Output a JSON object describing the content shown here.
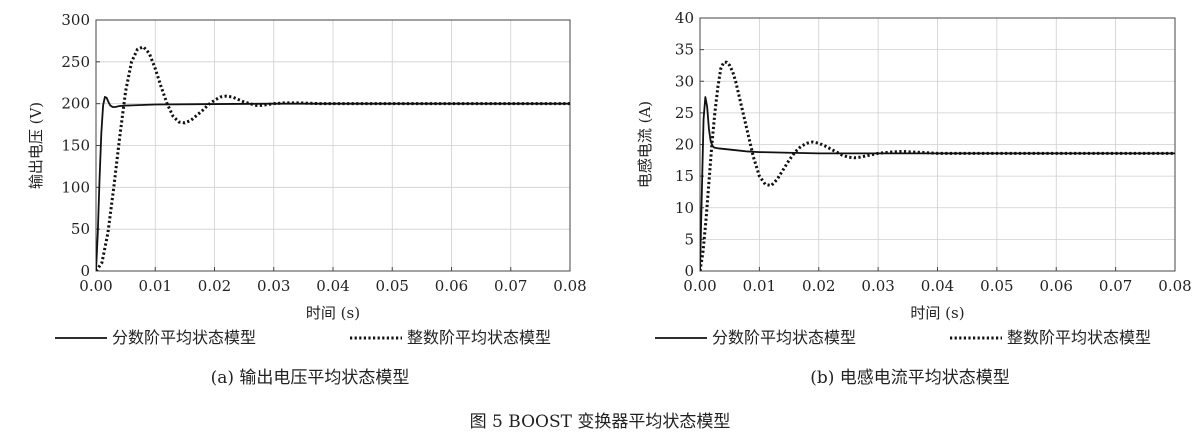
{
  "figure_caption": "图 5   BOOST 变换器平均状态模型",
  "chart_data": [
    {
      "type": "line",
      "subcaption": "(a) 输出电压平均状态模型",
      "xlabel": "时间 (s)",
      "ylabel": "输出电压 (V)",
      "xlim": [
        0,
        0.08
      ],
      "ylim": [
        0,
        300
      ],
      "xticks": [
        0,
        0.01,
        0.02,
        0.03,
        0.04,
        0.05,
        0.06,
        0.07,
        0.08
      ],
      "xtick_labels": [
        "0.00",
        "0.01",
        "0.02",
        "0.03",
        "0.04",
        "0.05",
        "0.06",
        "0.07",
        "0.08"
      ],
      "yticks": [
        0,
        50,
        100,
        150,
        200,
        250,
        300
      ],
      "ytick_labels": [
        "0",
        "50",
        "100",
        "150",
        "200",
        "250",
        "300"
      ],
      "grid": true,
      "legend_position": "bottom",
      "series": [
        {
          "name": "分数阶平均状态模型",
          "style": "solid",
          "color": "#111111",
          "x": [
            0,
            0.0003,
            0.0006,
            0.0009,
            0.0012,
            0.0015,
            0.0018,
            0.0021,
            0.0024,
            0.0028,
            0.0033,
            0.0038,
            0.0045,
            0.006,
            0.01,
            0.02,
            0.03,
            0.04,
            0.06,
            0.08
          ],
          "y": [
            0,
            45,
            110,
            165,
            198,
            208,
            207,
            202,
            198,
            196,
            196,
            197,
            197.5,
            198,
            199,
            199.5,
            200,
            200,
            200,
            200
          ]
        },
        {
          "name": "整数阶平均状态模型",
          "style": "dotted",
          "color": "#111111",
          "x": [
            0,
            0.001,
            0.002,
            0.003,
            0.004,
            0.005,
            0.006,
            0.007,
            0.008,
            0.009,
            0.01,
            0.011,
            0.012,
            0.013,
            0.014,
            0.015,
            0.016,
            0.017,
            0.018,
            0.019,
            0.02,
            0.021,
            0.022,
            0.023,
            0.024,
            0.025,
            0.026,
            0.027,
            0.028,
            0.029,
            0.03,
            0.032,
            0.034,
            0.036,
            0.038,
            0.04,
            0.045,
            0.05,
            0.06,
            0.07,
            0.08
          ],
          "y": [
            0,
            10,
            45,
            100,
            160,
            215,
            250,
            265,
            268,
            260,
            242,
            220,
            200,
            185,
            178,
            177,
            180,
            186,
            192,
            199,
            204,
            208,
            209,
            208,
            205,
            202,
            200,
            198,
            198,
            199,
            200,
            201,
            201,
            200.5,
            200,
            200,
            200,
            200,
            200,
            200,
            200
          ]
        }
      ]
    },
    {
      "type": "line",
      "subcaption": "(b) 电感电流平均状态模型",
      "xlabel": "时间 (s)",
      "ylabel": "电感电流 (A)",
      "xlim": [
        0,
        0.08
      ],
      "ylim": [
        0,
        40
      ],
      "xticks": [
        0,
        0.01,
        0.02,
        0.03,
        0.04,
        0.05,
        0.06,
        0.07,
        0.08
      ],
      "xtick_labels": [
        "0.00",
        "0.01",
        "0.02",
        "0.03",
        "0.04",
        "0.05",
        "0.06",
        "0.07",
        "0.08"
      ],
      "yticks": [
        0,
        5,
        10,
        15,
        20,
        25,
        30,
        35,
        40
      ],
      "ytick_labels": [
        "0",
        "5",
        "10",
        "15",
        "20",
        "25",
        "30",
        "35",
        "40"
      ],
      "grid": true,
      "legend_position": "bottom",
      "series": [
        {
          "name": "分数阶平均状态模型",
          "style": "solid",
          "color": "#111111",
          "x": [
            0,
            0.0003,
            0.0006,
            0.0009,
            0.0012,
            0.0015,
            0.0018,
            0.0021,
            0.0024,
            0.003,
            0.004,
            0.006,
            0.008,
            0.01,
            0.015,
            0.02,
            0.03,
            0.04,
            0.06,
            0.08
          ],
          "y": [
            0,
            12,
            24,
            27.5,
            26,
            22.5,
            20.5,
            19.8,
            19.5,
            19.4,
            19.3,
            19.1,
            18.9,
            18.8,
            18.7,
            18.6,
            18.6,
            18.6,
            18.6,
            18.6
          ]
        },
        {
          "name": "整数阶平均状态模型",
          "style": "dotted",
          "color": "#111111",
          "x": [
            0,
            0.0005,
            0.001,
            0.0015,
            0.002,
            0.0025,
            0.003,
            0.0035,
            0.004,
            0.0045,
            0.005,
            0.0055,
            0.006,
            0.007,
            0.008,
            0.009,
            0.01,
            0.011,
            0.012,
            0.013,
            0.014,
            0.015,
            0.016,
            0.017,
            0.018,
            0.019,
            0.02,
            0.021,
            0.022,
            0.023,
            0.024,
            0.025,
            0.026,
            0.027,
            0.028,
            0.029,
            0.03,
            0.032,
            0.034,
            0.036,
            0.038,
            0.04,
            0.045,
            0.05,
            0.06,
            0.07,
            0.08
          ],
          "y": [
            0,
            3,
            8,
            14,
            20,
            25,
            29,
            32,
            33,
            33,
            32.5,
            31.5,
            30,
            26,
            22,
            18,
            15,
            13.7,
            13.5,
            14.5,
            16,
            17.5,
            18.8,
            19.7,
            20.2,
            20.4,
            20.2,
            19.8,
            19.3,
            18.8,
            18.3,
            18.0,
            17.9,
            18.0,
            18.2,
            18.4,
            18.6,
            18.8,
            18.9,
            18.8,
            18.7,
            18.6,
            18.6,
            18.6,
            18.6,
            18.6,
            18.6
          ]
        }
      ]
    }
  ]
}
